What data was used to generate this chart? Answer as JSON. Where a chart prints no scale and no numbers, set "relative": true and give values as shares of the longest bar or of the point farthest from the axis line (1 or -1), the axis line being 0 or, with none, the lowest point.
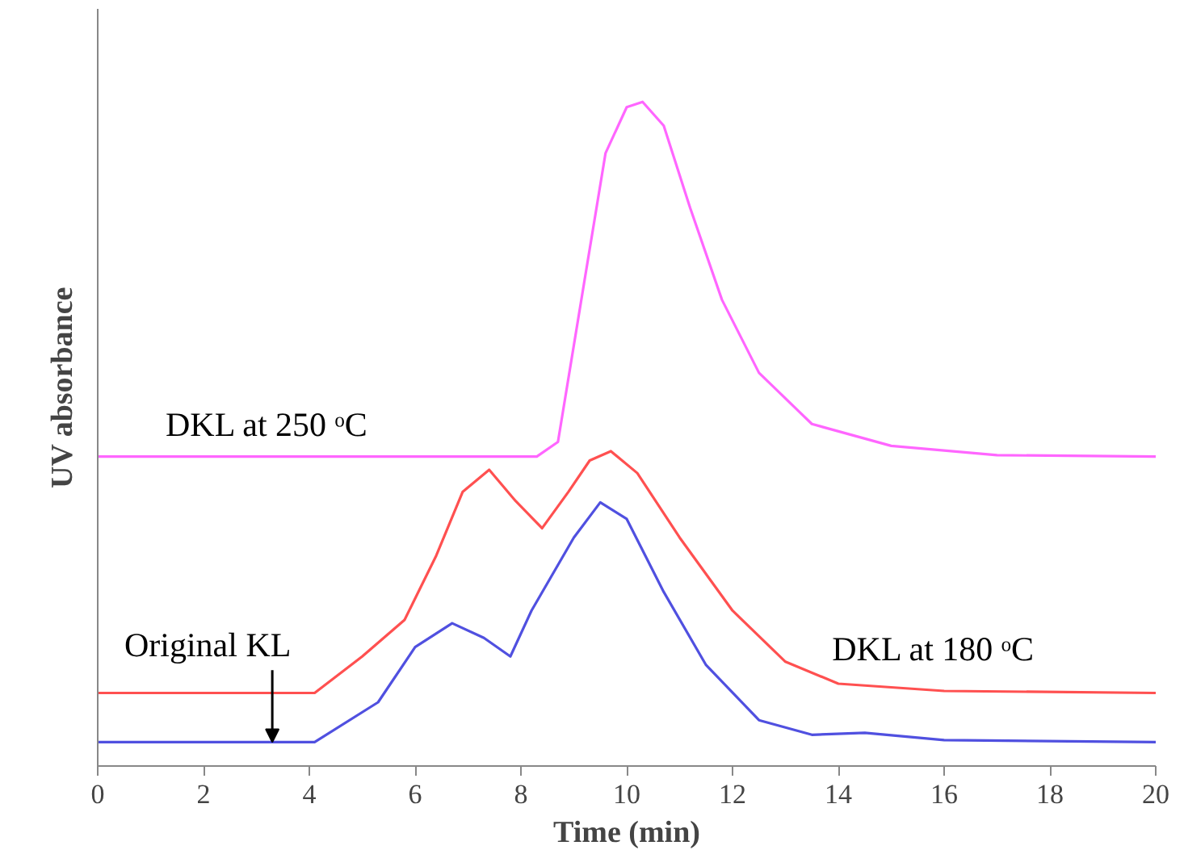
{
  "chart_data": {
    "type": "line",
    "relative": true,
    "xlabel": "Time (min)",
    "ylabel": "UV absorbance",
    "xlim": [
      0,
      20
    ],
    "xticks": [
      0,
      2,
      4,
      6,
      8,
      10,
      12,
      14,
      16,
      18,
      20
    ],
    "tick_labels": "x",
    "grid": false,
    "line_style": "solid",
    "marker": "none",
    "series": [
      {
        "color": "#ff66ff",
        "x": [
          0,
          4,
          8.3,
          8.7,
          9.2,
          9.6,
          10.0,
          10.3,
          10.7,
          11.2,
          11.8,
          12.5,
          13.5,
          15,
          17,
          20
        ],
        "values": [
          0.466,
          0.466,
          0.466,
          0.488,
          0.73,
          0.923,
          0.992,
          1.0,
          0.964,
          0.84,
          0.702,
          0.592,
          0.515,
          0.482,
          0.468,
          0.466
        ]
      },
      {
        "color": "#ff5050",
        "x": [
          0,
          4.1,
          5,
          5.8,
          6.4,
          6.9,
          7.4,
          7.9,
          8.4,
          8.9,
          9.3,
          9.7,
          10.2,
          11,
          12,
          13,
          14,
          16,
          20
        ],
        "values": [
          0.11,
          0.11,
          0.165,
          0.22,
          0.317,
          0.413,
          0.446,
          0.399,
          0.358,
          0.413,
          0.46,
          0.474,
          0.441,
          0.344,
          0.234,
          0.157,
          0.124,
          0.113,
          0.11
        ]
      },
      {
        "color": "#5050e0",
        "x": [
          0,
          4.1,
          5.3,
          6,
          6.7,
          7.3,
          7.8,
          8.2,
          8.6,
          9.0,
          9.5,
          10,
          10.7,
          11.5,
          12.5,
          13.5,
          14.5,
          16,
          20
        ],
        "values": [
          0.036,
          0.036,
          0.096,
          0.179,
          0.215,
          0.193,
          0.165,
          0.234,
          0.289,
          0.344,
          0.397,
          0.372,
          0.262,
          0.152,
          0.069,
          0.047,
          0.05,
          0.039,
          0.036
        ]
      }
    ],
    "annotations": [
      {
        "text": "Original KL",
        "x": 3.3,
        "y": 0.036
      },
      {
        "text": "DKL at 250 ᵒC",
        "x": 3.2,
        "y": 0.466
      },
      {
        "text": "DKL at 180 ᵒC",
        "x": 15.8,
        "y": 0.113
      }
    ]
  }
}
